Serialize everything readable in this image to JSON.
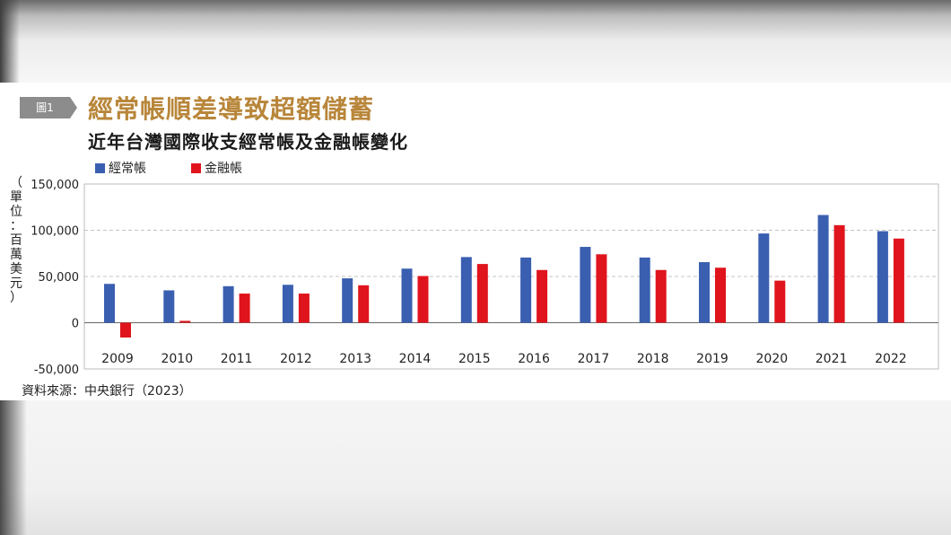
{
  "figure": {
    "tag_label": "圖1",
    "title": "經常帳順差導致超額儲蓄",
    "subtitle": "近年台灣國際收支經常帳及金融帳變化",
    "unit_label": [
      "（",
      "單",
      "位",
      "：",
      "百",
      "萬",
      "美",
      "元",
      "）"
    ],
    "source": "資料來源：中央銀行（2023）"
  },
  "colors": {
    "title": "#b8863a",
    "current_account": "#3a5fb0",
    "financial_account": "#e0141c",
    "tag": "#8c8c8c"
  },
  "chart_data": {
    "type": "bar",
    "categories": [
      "2009",
      "2010",
      "2011",
      "2012",
      "2013",
      "2014",
      "2015",
      "2016",
      "2017",
      "2018",
      "2019",
      "2020",
      "2021",
      "2022"
    ],
    "series": [
      {
        "name": "經常帳",
        "color": "#3a5fb0",
        "values": [
          42000,
          35000,
          39500,
          41000,
          48000,
          58500,
          71000,
          70500,
          82000,
          70500,
          65500,
          96500,
          116500,
          99000
        ]
      },
      {
        "name": "金融帳",
        "color": "#e0141c",
        "values": [
          -16000,
          2000,
          31500,
          31500,
          40500,
          50500,
          63500,
          57000,
          74000,
          57000,
          59500,
          45500,
          105500,
          91000
        ]
      }
    ],
    "y_ticks": [
      "150,000",
      "100,000",
      "50,000",
      "0",
      "-50,000"
    ],
    "y_tick_values": [
      150000,
      100000,
      50000,
      0,
      -50000
    ],
    "ylim": [
      -50000,
      150000
    ],
    "grid": "dashed horizontal",
    "legend_position": "top-left"
  }
}
